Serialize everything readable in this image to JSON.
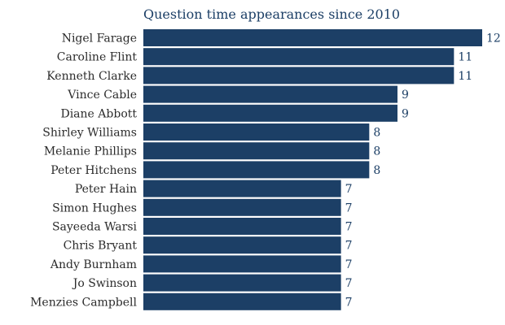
{
  "chart_data": {
    "type": "bar",
    "orientation": "horizontal",
    "title": "Question time appearances since 2010",
    "categories": [
      "Nigel Farage",
      "Caroline Flint",
      "Kenneth Clarke",
      "Vince Cable",
      "Diane Abbott",
      "Shirley Williams",
      "Melanie Phillips",
      "Peter Hitchens",
      "Peter Hain",
      "Simon Hughes",
      "Sayeeda Warsi",
      "Chris Bryant",
      "Andy Burnham",
      "Jo Swinson",
      "Menzies Campbell"
    ],
    "values": [
      12,
      11,
      11,
      9,
      9,
      8,
      8,
      8,
      7,
      7,
      7,
      7,
      7,
      7,
      7
    ],
    "value_labels": [
      "12",
      "11",
      "11",
      "9",
      "9",
      "8",
      "8",
      "8",
      "7",
      "7",
      "7",
      "7",
      "7",
      "7",
      "7"
    ],
    "xlim": [
      0,
      12
    ],
    "grid": false,
    "legend": "none",
    "bar_color": "#1c3f66",
    "label_color": "#2b2b2b",
    "value_color": "#1c3f66"
  }
}
